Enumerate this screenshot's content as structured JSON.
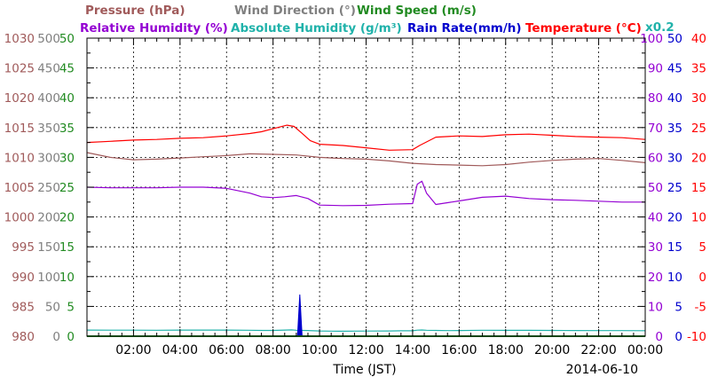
{
  "chart_data": {
    "type": "line",
    "xlabel": "Time (JST)",
    "date": "2014-06-10",
    "x_ticks": [
      "02:00",
      "04:00",
      "06:00",
      "08:00",
      "10:00",
      "12:00",
      "14:00",
      "16:00",
      "18:00",
      "20:00",
      "22:00",
      "00:00"
    ],
    "x_range_hours": [
      0,
      24
    ],
    "grid": true,
    "legend_row1": [
      {
        "text": "Pressure (hPa)",
        "color": "#a05a5a"
      },
      {
        "text": "Wind Direction (°)",
        "color": "#808080"
      },
      {
        "text": "Wind Speed (m/s)",
        "color": "#228b22"
      }
    ],
    "legend_row2": [
      {
        "text": "Relative Humidity (%)",
        "color": "#9400d3"
      },
      {
        "text": "Absolute Humidity (g/m³)",
        "color": "#20b2aa"
      },
      {
        "text": "Rain Rate(mm/h)",
        "color": "#0000cd"
      },
      {
        "text": "Temperature (°C)",
        "color": "#ff0000"
      }
    ],
    "scale_note": {
      "text": "x0.2",
      "color": "#20b2aa"
    },
    "left_axes": [
      {
        "name": "Pressure",
        "color": "#a05a5a",
        "ticks": [
          "1030",
          "1025",
          "1020",
          "1015",
          "1010",
          "1005",
          "1000",
          "995",
          "990",
          "985",
          "980"
        ]
      },
      {
        "name": "Wind Direction",
        "color": "#808080",
        "ticks": [
          "500",
          "450",
          "400",
          "350",
          "300",
          "250",
          "200",
          "150",
          "100",
          "50",
          "0"
        ]
      },
      {
        "name": "Wind Speed",
        "color": "#228b22",
        "ticks": [
          "50",
          "45",
          "40",
          "35",
          "30",
          "25",
          "20",
          "15",
          "10",
          "5",
          "0"
        ]
      }
    ],
    "right_axes": [
      {
        "name": "Relative Humidity",
        "color": "#9400d3",
        "ticks": [
          "100",
          "90",
          "80",
          "70",
          "60",
          "50",
          "40",
          "30",
          "20",
          "10",
          "0"
        ]
      },
      {
        "name": "Rain Rate",
        "color": "#0000cd",
        "ticks": [
          "50",
          "45",
          "40",
          "35",
          "30",
          "25",
          "20",
          "15",
          "10",
          "5",
          "0"
        ]
      },
      {
        "name": "Temperature",
        "color": "#ff0000",
        "ticks": [
          "40",
          "35",
          "30",
          "25",
          "20",
          "15",
          "10",
          "5",
          "0",
          "-5",
          "-10"
        ]
      }
    ],
    "series": [
      {
        "name": "Temperature",
        "unit": "°C",
        "color": "#ff0000",
        "ylim": [
          -10,
          40
        ],
        "x": [
          0,
          1,
          2,
          3,
          4,
          5,
          6,
          7,
          7.5,
          8,
          8.6,
          8.9,
          9.2,
          9.6,
          10,
          11,
          12,
          13,
          14,
          14.3,
          15,
          16,
          17,
          18,
          19,
          20,
          21,
          22,
          23,
          24
        ],
        "y": [
          22.5,
          22.7,
          22.9,
          23.0,
          23.2,
          23.3,
          23.6,
          24.0,
          24.3,
          24.8,
          25.4,
          25.2,
          24.2,
          22.8,
          22.2,
          22.0,
          21.6,
          21.2,
          21.3,
          22.0,
          23.4,
          23.6,
          23.5,
          23.8,
          23.9,
          23.7,
          23.5,
          23.4,
          23.3,
          23.0
        ]
      },
      {
        "name": "Pressure",
        "unit": "hPa",
        "color": "#a05a5a",
        "ylim": [
          980,
          1030
        ],
        "x": [
          0,
          1,
          2,
          3,
          4,
          5,
          6,
          7,
          8,
          9,
          10,
          11,
          12,
          13,
          14,
          15,
          16,
          17,
          18,
          19,
          20,
          21,
          22,
          23,
          24
        ],
        "y": [
          1010.8,
          1010.0,
          1009.6,
          1009.7,
          1009.9,
          1010.1,
          1010.3,
          1010.6,
          1010.5,
          1010.4,
          1010.0,
          1009.8,
          1009.7,
          1009.4,
          1009.0,
          1008.8,
          1008.7,
          1008.6,
          1008.8,
          1009.2,
          1009.5,
          1009.7,
          1009.8,
          1009.5,
          1009.1
        ]
      },
      {
        "name": "Absolute Humidity",
        "unit": "g/m³",
        "color": "#20b2aa",
        "ylim": [
          0,
          250
        ],
        "scale": 0.2,
        "x": [
          0,
          1,
          2,
          3,
          4,
          5,
          6,
          7,
          7.5,
          8,
          8.5,
          8.8,
          9,
          9.5,
          10,
          10.5,
          11,
          12,
          13,
          13.5,
          14,
          14.2,
          14.4,
          14.6,
          15,
          15.5,
          16,
          17,
          18,
          19,
          20,
          21,
          22,
          23,
          24
        ],
        "y": [
          25.5,
          25.3,
          25.2,
          25.0,
          25.6,
          25.8,
          25.5,
          24.8,
          24.0,
          24.3,
          25.5,
          26.5,
          25.0,
          23.8,
          22.0,
          21.2,
          21.0,
          21.6,
          22.0,
          22.6,
          22.8,
          25.2,
          26.0,
          25.0,
          24.0,
          23.5,
          23.8,
          24.8,
          24.6,
          24.4,
          24.3,
          23.9,
          23.5,
          23.3,
          23.2
        ]
      },
      {
        "name": "Relative Humidity",
        "unit": "%",
        "color": "#9400d3",
        "ylim": [
          0,
          100
        ],
        "x": [
          0,
          1,
          2,
          3,
          4,
          5,
          6,
          7,
          7.5,
          8,
          8.5,
          9,
          9.5,
          10,
          11,
          12,
          13,
          14,
          14.2,
          14.4,
          14.6,
          15,
          15.5,
          16,
          17,
          18,
          19,
          20,
          21,
          22,
          23,
          24
        ],
        "y": [
          50.0,
          49.8,
          49.8,
          49.8,
          50.0,
          50.0,
          49.6,
          48.0,
          46.8,
          46.5,
          46.8,
          47.2,
          46.2,
          44.0,
          43.8,
          43.9,
          44.3,
          44.5,
          51.0,
          52.0,
          48.0,
          44.2,
          44.8,
          45.4,
          46.6,
          47.0,
          46.2,
          45.8,
          45.6,
          45.3,
          45.0,
          45.0
        ]
      },
      {
        "name": "Rain Rate",
        "unit": "mm/h",
        "color": "#0000cd",
        "ylim": [
          0,
          50
        ],
        "x": [
          0,
          8.95,
          9.05,
          9.15,
          9.25,
          24
        ],
        "y": [
          0,
          0,
          0,
          7.0,
          0,
          0
        ]
      },
      {
        "name": "Wind Speed",
        "unit": "m/s",
        "color": "#228b22",
        "ylim": [
          0,
          50
        ],
        "x": [
          0,
          24
        ],
        "y": [
          0,
          0
        ]
      }
    ]
  }
}
